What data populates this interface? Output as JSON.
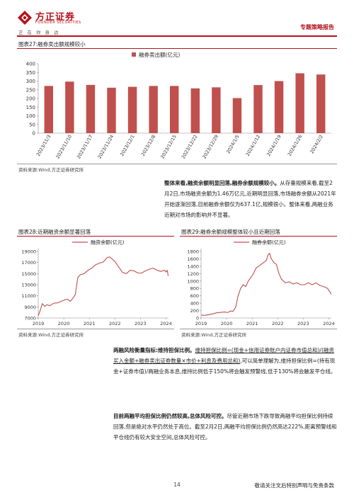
{
  "header": {
    "brand_name": "方正证券",
    "brand_en": "FOUNDER SECURITIES",
    "slogan": "正在你身边",
    "report_type": "专题策略报告",
    "brand_color": "#b5121b"
  },
  "fig27": {
    "title": "图表27:融券卖出额规模较小",
    "source": "资料来源:Wind,方正证券研究所"
  },
  "fig28": {
    "title": "图表28:近期融资余额显著回落",
    "source": "资料来源:Wind,方正证券研究所"
  },
  "fig29": {
    "title": "图表29:融券余额规模整体较小且近期回落",
    "source": "资料来源:Wind,方正证券研究所"
  },
  "para1": {
    "lead": "整体来看,融资余额明显回落,融券余额规模较小。",
    "body": "从存量规模来看,截至2月2日,市场融资余额为1.46万亿元,近期明显回落,市场融券余额从2021年开始逐渐回落,目前融券余额仅为637.1亿,规模很小。整体来看,两融业务近期对市场的影响并不显著。"
  },
  "para2": {
    "lead": "两融风险衡量指标:维持担保比例。",
    "underlined": "维持担保比例=(现金+信用证券账户内证券市值总和)/(融资买入金额+融券卖出证券数量×市价+利息及费用总和)",
    "body": ",可以简单理解为,维持担保比例=(持有现金+证券市值)/两融业务本息,维持比例低于150%将会触发预警线,低于130%将会触发平仓线。"
  },
  "para3": {
    "lead": "目前两融平均担保比例仍然较高,总体风险可控。",
    "body": "尽管近期市场下跌导致两融平均担保比例持续回落,但是绝对水平仍然处于高位。截至2月2日,两融平均担保比例仍然高达222%,距离预警线和平仓线仍有较大安全空间,总体风险可控。"
  },
  "footer": {
    "page": "14",
    "note": "敬请关注文后特别声明与免责条款"
  },
  "chart_data": [
    {
      "id": "fig27",
      "type": "bar",
      "legend": "融券卖出额(亿元)",
      "legend_position": "top",
      "color": "#c0504d",
      "categories": [
        "2023/11/3",
        "2023/11/10",
        "2023/11/17",
        "2023/11/24",
        "2023/12/1",
        "2023/12/8",
        "2023/12/15",
        "2023/12/22",
        "2023/12/29",
        "2024/1/5",
        "2024/1/12",
        "2024/1/19",
        "2024/1/26",
        "2024/2/2"
      ],
      "values": [
        272,
        297,
        278,
        262,
        267,
        272,
        272,
        258,
        264,
        202,
        277,
        300,
        345,
        338
      ],
      "ylim": [
        0,
        400
      ],
      "yticks": [
        0,
        50,
        100,
        150,
        200,
        250,
        300,
        350,
        400
      ],
      "grid": false
    },
    {
      "id": "fig28",
      "type": "line",
      "legend": "融资余额(亿元)",
      "legend_position": "top",
      "color": "#c0504d",
      "x": [
        2019.0,
        2019.08,
        2019.16,
        2019.25,
        2019.35,
        2019.45,
        2019.55,
        2019.65,
        2019.75,
        2019.85,
        2019.95,
        2020.05,
        2020.15,
        2020.25,
        2020.35,
        2020.45,
        2020.5,
        2020.55,
        2020.65,
        2020.8,
        2020.95,
        2021.1,
        2021.25,
        2021.4,
        2021.55,
        2021.7,
        2021.8,
        2021.9,
        2022.0,
        2022.15,
        2022.3,
        2022.45,
        2022.6,
        2022.75,
        2022.9,
        2023.05,
        2023.2,
        2023.35,
        2023.5,
        2023.65,
        2023.8,
        2023.95,
        2024.0,
        2024.05,
        2024.09
      ],
      "y": [
        7400,
        8400,
        9600,
        9100,
        9400,
        9200,
        9500,
        9700,
        9700,
        9900,
        10100,
        10300,
        10400,
        10000,
        10500,
        11200,
        12700,
        14300,
        14800,
        15000,
        15600,
        16000,
        16600,
        16900,
        17100,
        17900,
        18000,
        17600,
        17200,
        16200,
        15200,
        15000,
        15600,
        15500,
        15100,
        15100,
        15500,
        15800,
        16000,
        15600,
        15400,
        15600,
        15300,
        15600,
        14600
      ],
      "xticks": [
        2019,
        2020,
        2021,
        2022,
        2023,
        2024
      ],
      "ylim": [
        7000,
        19000
      ],
      "yticks": [
        7000,
        9000,
        11000,
        13000,
        15000,
        17000,
        19000
      ],
      "grid": false
    },
    {
      "id": "fig29",
      "type": "line",
      "legend": "融券余额(亿元)",
      "legend_position": "top",
      "color": "#c0504d",
      "x": [
        2019.0,
        2019.15,
        2019.3,
        2019.45,
        2019.6,
        2019.75,
        2019.9,
        2020.05,
        2020.15,
        2020.25,
        2020.35,
        2020.45,
        2020.55,
        2020.65,
        2020.75,
        2020.85,
        2020.95,
        2021.05,
        2021.15,
        2021.25,
        2021.35,
        2021.45,
        2021.55,
        2021.62,
        2021.68,
        2021.75,
        2021.85,
        2021.95,
        2022.05,
        2022.15,
        2022.3,
        2022.45,
        2022.6,
        2022.75,
        2022.9,
        2023.05,
        2023.2,
        2023.35,
        2023.5,
        2023.65,
        2023.8,
        2023.95,
        2024.05,
        2024.09
      ],
      "y": [
        80,
        70,
        90,
        110,
        140,
        150,
        160,
        150,
        190,
        180,
        280,
        600,
        800,
        900,
        850,
        1000,
        1100,
        1200,
        1350,
        1400,
        1450,
        1500,
        1550,
        1700,
        1750,
        1600,
        1500,
        1450,
        1200,
        1050,
        950,
        980,
        920,
        950,
        900,
        900,
        950,
        900,
        950,
        880,
        850,
        800,
        700,
        637
      ],
      "xticks": [
        2019,
        2020,
        2021,
        2022,
        2023,
        2024
      ],
      "ylim": [
        0,
        1800
      ],
      "yticks": [
        0,
        200,
        400,
        600,
        800,
        1000,
        1200,
        1400,
        1600,
        1800
      ],
      "grid": false
    }
  ]
}
